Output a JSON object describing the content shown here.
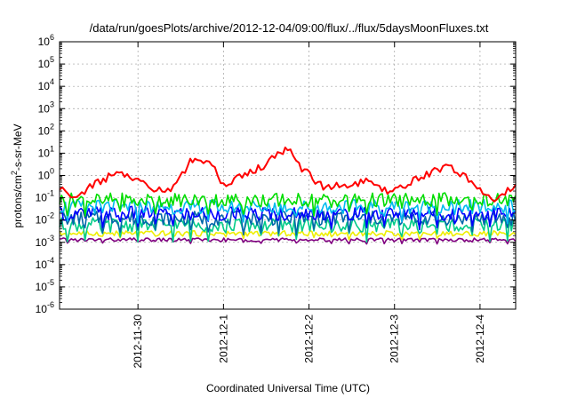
{
  "chart_data": {
    "type": "line",
    "title": "/data/run/goesPlots/archive/2012-12-04/09:00/flux/../flux/5daysMoonFluxes.txt",
    "xlabel": "Coordinated Universal Time (UTC)",
    "ylabel": "protons/cm²-s-sr-MeV",
    "yscale": "log",
    "ylim": [
      1e-06,
      1000000.0
    ],
    "y_ticks": [
      {
        "value": 1e-06,
        "base": "10",
        "exp": "-6"
      },
      {
        "value": 1e-05,
        "base": "10",
        "exp": "-5"
      },
      {
        "value": 0.0001,
        "base": "10",
        "exp": "-4"
      },
      {
        "value": 0.001,
        "base": "10",
        "exp": "-3"
      },
      {
        "value": 0.01,
        "base": "10",
        "exp": "-2"
      },
      {
        "value": 0.1,
        "base": "10",
        "exp": "-1"
      },
      {
        "value": 1,
        "base": "10",
        "exp": "0"
      },
      {
        "value": 10,
        "base": "10",
        "exp": "1"
      },
      {
        "value": 100,
        "base": "10",
        "exp": "2"
      },
      {
        "value": 1000,
        "base": "10",
        "exp": "3"
      },
      {
        "value": 10000,
        "base": "10",
        "exp": "4"
      },
      {
        "value": 100000,
        "base": "10",
        "exp": "5"
      },
      {
        "value": 1000000,
        "base": "10",
        "exp": "6"
      }
    ],
    "x_ticks": [
      "2012-11-30",
      "2012-12-1",
      "2012-12-2",
      "2012-12-3",
      "2012-12-4"
    ],
    "xlim": [
      "2012-11-29T02:00",
      "2012-12-04T10:00"
    ],
    "grid": true,
    "legend": "none",
    "series": [
      {
        "color": "#ff0000",
        "x": [
          "2012-11-29T02:00",
          "2012-11-29T06:00",
          "2012-11-29T12:00",
          "2012-11-29T18:00",
          "2012-11-30T00:00",
          "2012-11-30T06:00",
          "2012-11-30T10:00",
          "2012-11-30T14:00",
          "2012-11-30T16:00",
          "2012-11-30T20:00",
          "2012-12-01T00:00",
          "2012-12-01T06:00",
          "2012-12-01T12:00",
          "2012-12-01T16:00",
          "2012-12-01T18:00",
          "2012-12-01T22:00",
          "2012-12-02T04:00",
          "2012-12-02T10:00",
          "2012-12-02T16:00",
          "2012-12-02T22:00",
          "2012-12-03T06:00",
          "2012-12-03T12:00",
          "2012-12-03T16:00",
          "2012-12-03T20:00",
          "2012-12-04T00:00",
          "2012-12-04T04:00",
          "2012-12-04T10:00"
        ],
        "values": [
          0.3,
          0.1,
          0.4,
          1.3,
          0.6,
          0.2,
          0.3,
          3,
          7,
          4,
          0.4,
          1,
          3,
          12,
          15,
          2,
          0.3,
          0.4,
          0.5,
          0.2,
          0.6,
          2,
          2.5,
          0.8,
          0.2,
          0.1,
          0.4
        ]
      },
      {
        "color": "#00dd00",
        "x": [
          "2012-11-29T02:00",
          "2012-12-04T10:00"
        ],
        "values": [
          0.08,
          0.08
        ]
      },
      {
        "color": "#00bbee",
        "x": [
          "2012-11-29T02:00",
          "2012-12-04T10:00"
        ],
        "values": [
          0.04,
          0.04
        ]
      },
      {
        "color": "#0000ff",
        "x": [
          "2012-11-29T02:00",
          "2012-12-04T10:00"
        ],
        "values": [
          0.02,
          0.02
        ]
      },
      {
        "color": "#0066aa",
        "x": [
          "2012-11-29T02:00",
          "2012-12-04T10:00"
        ],
        "values": [
          0.012,
          0.012
        ]
      },
      {
        "color": "#00cc88",
        "x": [
          "2012-11-29T02:00",
          "2012-12-04T10:00"
        ],
        "values": [
          0.006,
          0.006
        ]
      },
      {
        "color": "#eeee00",
        "x": [
          "2012-11-29T02:00",
          "2012-12-04T10:00"
        ],
        "values": [
          0.0025,
          0.0025
        ]
      },
      {
        "color": "#800080",
        "x": [
          "2012-11-29T02:00",
          "2012-12-04T10:00"
        ],
        "values": [
          0.0013,
          0.0013
        ]
      }
    ]
  }
}
